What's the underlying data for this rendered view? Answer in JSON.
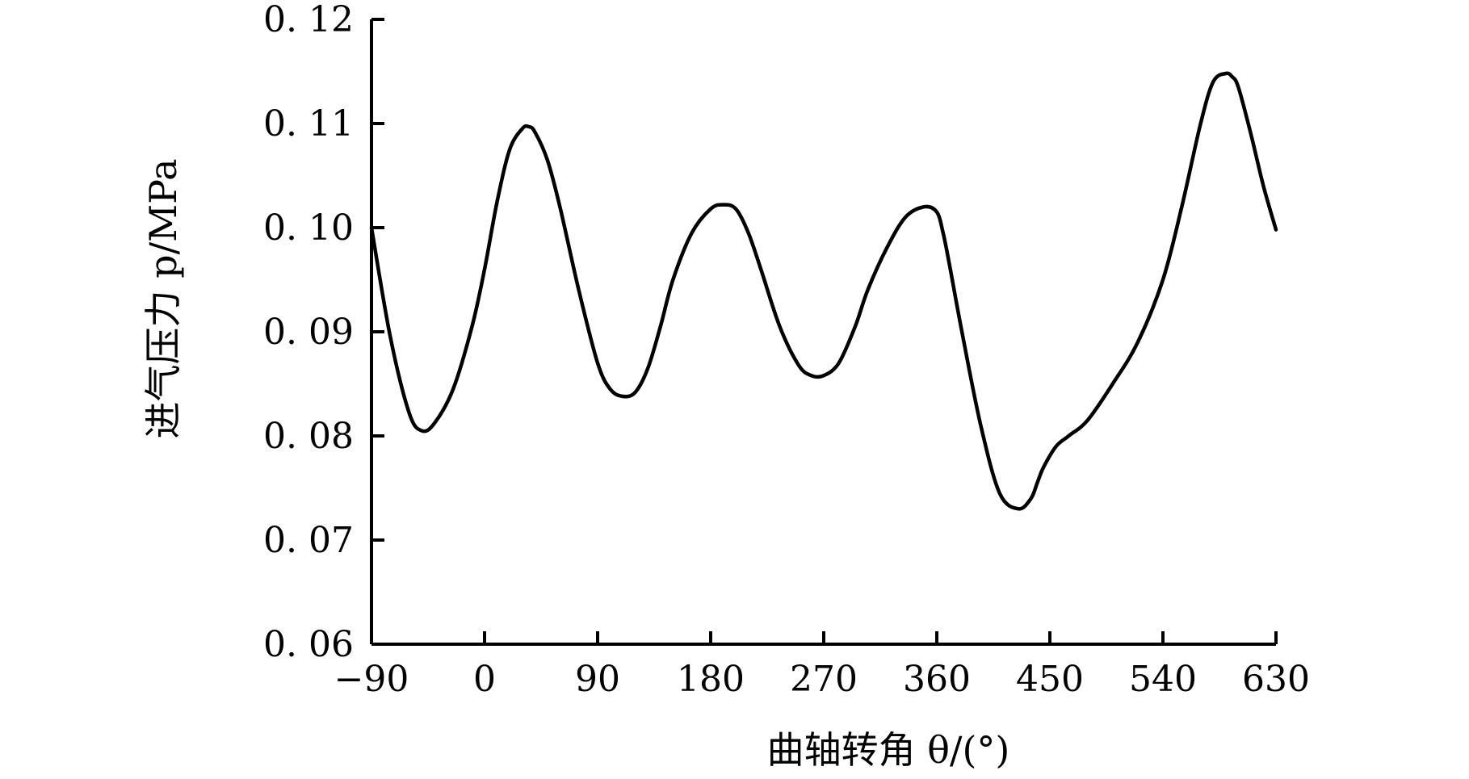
{
  "chart_data": {
    "type": "line",
    "title": "",
    "xlabel": "曲轴转角 θ/(°)",
    "ylabel": "进气压力 p/MPa",
    "xlim": [
      -90,
      630
    ],
    "ylim": [
      0.06,
      0.12
    ],
    "xticks": [
      -90,
      0,
      90,
      180,
      270,
      360,
      450,
      540,
      630
    ],
    "xtick_labels": [
      "−90",
      "0",
      "90",
      "180",
      "270",
      "360",
      "450",
      "540",
      "630"
    ],
    "yticks": [
      0.06,
      0.07,
      0.08,
      0.09,
      0.1,
      0.11,
      0.12
    ],
    "ytick_labels": [
      "0. 06",
      "0. 07",
      "0. 08",
      "0. 09",
      "0. 10",
      "0. 11",
      "0. 12"
    ],
    "grid": false,
    "series": [
      {
        "color": "#000000",
        "x": [
          -90,
          -75,
          -60,
          -50,
          -40,
          -25,
          -10,
          0,
          10,
          20,
          30,
          35,
          40,
          50,
          60,
          75,
          90,
          100,
          110,
          120,
          130,
          140,
          150,
          165,
          180,
          190,
          200,
          210,
          220,
          235,
          250,
          260,
          270,
          282,
          295,
          305,
          320,
          335,
          350,
          360,
          365,
          370,
          380,
          395,
          410,
          425,
          435,
          440,
          445,
          455,
          465,
          480,
          500,
          520,
          540,
          555,
          570,
          580,
          590,
          595,
          600,
          610,
          620,
          630
        ],
        "y": [
          0.1,
          0.0895,
          0.0822,
          0.0805,
          0.0812,
          0.0845,
          0.0905,
          0.096,
          0.1025,
          0.1075,
          0.1095,
          0.1097,
          0.1092,
          0.1065,
          0.102,
          0.094,
          0.087,
          0.0845,
          0.0838,
          0.0842,
          0.0865,
          0.0905,
          0.095,
          0.0995,
          0.1018,
          0.1022,
          0.1018,
          0.0995,
          0.096,
          0.0905,
          0.0868,
          0.0858,
          0.0858,
          0.087,
          0.0905,
          0.094,
          0.098,
          0.101,
          0.102,
          0.1015,
          0.0995,
          0.0965,
          0.09,
          0.081,
          0.0745,
          0.073,
          0.074,
          0.0755,
          0.077,
          0.079,
          0.08,
          0.0815,
          0.085,
          0.089,
          0.095,
          0.102,
          0.11,
          0.114,
          0.1148,
          0.1145,
          0.1135,
          0.109,
          0.104,
          0.0998
        ]
      }
    ]
  }
}
